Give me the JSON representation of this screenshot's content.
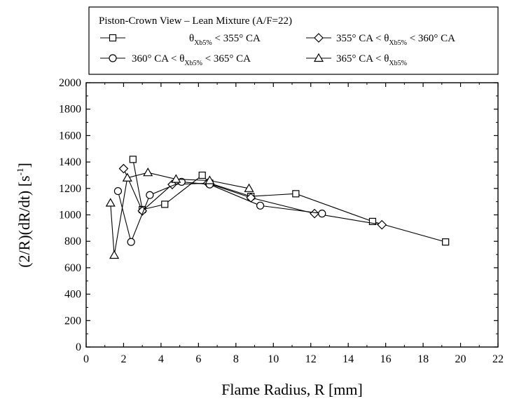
{
  "chart_data": {
    "type": "line",
    "legend_title": "Piston-Crown View – Lean Mixture (A/F=22)",
    "xlabel": "Flame Radius, R [mm]",
    "ylabel_main": "(2/R)(dR/dt) [s",
    "ylabel_sup": "-1",
    "ylabel_end": "]",
    "xlim": [
      0,
      22
    ],
    "ylim": [
      0,
      2000
    ],
    "x_ticks": [
      "0",
      "2",
      "4",
      "6",
      "8",
      "10",
      "12",
      "14",
      "16",
      "18",
      "20",
      "22"
    ],
    "y_ticks": [
      "0",
      "200",
      "400",
      "600",
      "800",
      "1000",
      "1200",
      "1400",
      "1600",
      "1800",
      "2000"
    ],
    "legend_placement": "top",
    "grid": false,
    "series": [
      {
        "marker": "square",
        "legend": {
          "pre": "θ",
          "sub": "Xb5%",
          "post": " < 355° CA"
        },
        "points": [
          [
            2.5,
            1420
          ],
          [
            3.0,
            1040
          ],
          [
            4.2,
            1080
          ],
          [
            6.2,
            1300
          ],
          [
            6.6,
            1240
          ],
          [
            8.8,
            1140
          ],
          [
            11.2,
            1160
          ],
          [
            15.3,
            950
          ],
          [
            19.2,
            795
          ]
        ]
      },
      {
        "marker": "diamond",
        "legend": {
          "pre": "355° CA < θ",
          "sub": "Xb5%",
          "post": " < 360° CA"
        },
        "points": [
          [
            2.0,
            1350
          ],
          [
            3.0,
            1030
          ],
          [
            4.6,
            1230
          ],
          [
            6.5,
            1240
          ],
          [
            8.8,
            1130
          ],
          [
            12.2,
            1010
          ],
          [
            15.8,
            925
          ]
        ]
      },
      {
        "marker": "circle",
        "legend": {
          "pre": "360° CA < θ",
          "sub": "Xb5%",
          "post": " < 365° CA"
        },
        "points": [
          [
            1.7,
            1180
          ],
          [
            2.4,
            795
          ],
          [
            3.4,
            1150
          ],
          [
            5.1,
            1250
          ],
          [
            6.6,
            1230
          ],
          [
            9.3,
            1070
          ],
          [
            12.6,
            1010
          ]
        ]
      },
      {
        "marker": "triangle",
        "legend": {
          "pre": "365° CA < θ",
          "sub": "Xb5%",
          "post": ""
        },
        "points": [
          [
            1.3,
            1090
          ],
          [
            1.5,
            695
          ],
          [
            2.2,
            1280
          ],
          [
            3.3,
            1320
          ],
          [
            4.8,
            1270
          ],
          [
            6.6,
            1260
          ],
          [
            8.7,
            1200
          ]
        ]
      }
    ]
  }
}
